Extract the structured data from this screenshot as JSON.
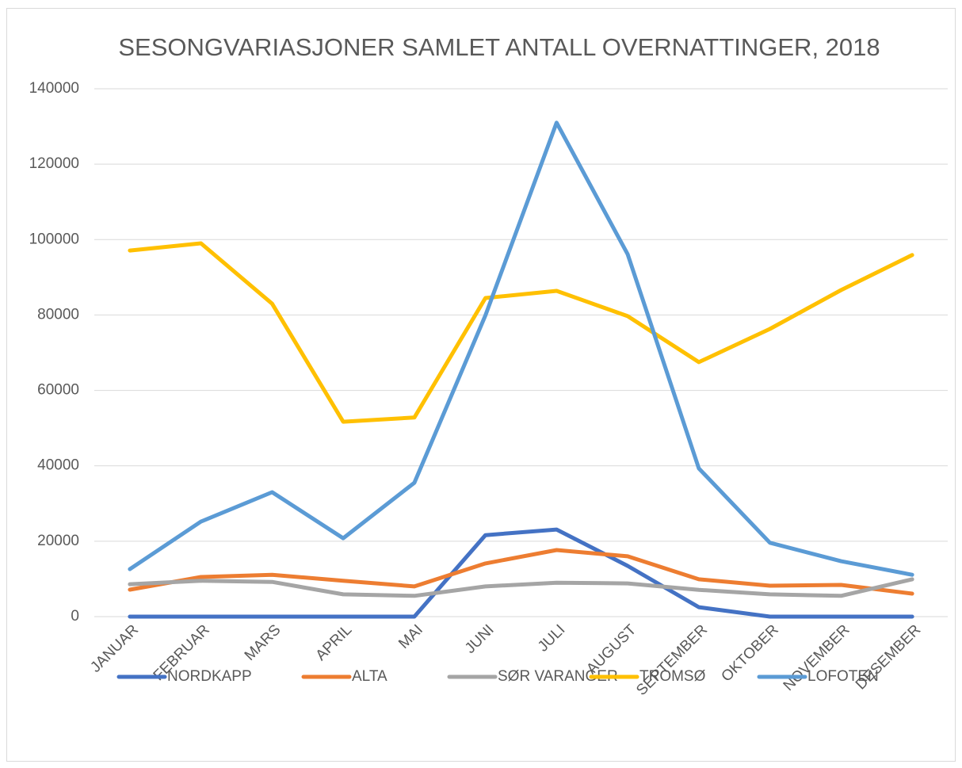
{
  "chart_data": {
    "type": "line",
    "title": "SESONGVARIASJONER SAMLET ANTALL OVERNATTINGER, 2018",
    "categories": [
      "JANUAR",
      "FEBRUAR",
      "MARS",
      "APRIL",
      "MAI",
      "JUNI",
      "JULI",
      "AUGUST",
      "SEPTEMBER",
      "OKTOBER",
      "NOVEMBER",
      "DESEMBER"
    ],
    "series": [
      {
        "name": "NORDKAPP",
        "color": "#4472c4",
        "values": [
          0,
          0,
          0,
          0,
          0,
          21600,
          23100,
          13450,
          2500,
          0,
          0,
          0
        ]
      },
      {
        "name": "ALTA",
        "color": "#ed7d31",
        "values": [
          7150,
          10500,
          11100,
          9500,
          8000,
          14100,
          17650,
          16000,
          9900,
          8200,
          8400,
          6100
        ]
      },
      {
        "name": "SØR VARANGER",
        "color": "#a5a5a5",
        "values": [
          8600,
          9500,
          9200,
          5900,
          5500,
          8000,
          9000,
          8800,
          7100,
          5900,
          5500,
          9900
        ]
      },
      {
        "name": "TROMSØ",
        "color": "#ffc000",
        "values": [
          97100,
          99000,
          83000,
          51700,
          52800,
          84500,
          86400,
          79700,
          67500,
          76300,
          86600,
          95900
        ]
      },
      {
        "name": "LOFOTEN",
        "color": "#5b9bd5",
        "values": [
          12600,
          25200,
          33000,
          20800,
          35500,
          79900,
          131000,
          96100,
          39300,
          19600,
          14700,
          11100
        ]
      }
    ],
    "ylim": [
      0,
      140000
    ],
    "yticks": [
      0,
      20000,
      40000,
      60000,
      80000,
      100000,
      120000,
      140000
    ],
    "grid": true,
    "legend": "bottom"
  }
}
